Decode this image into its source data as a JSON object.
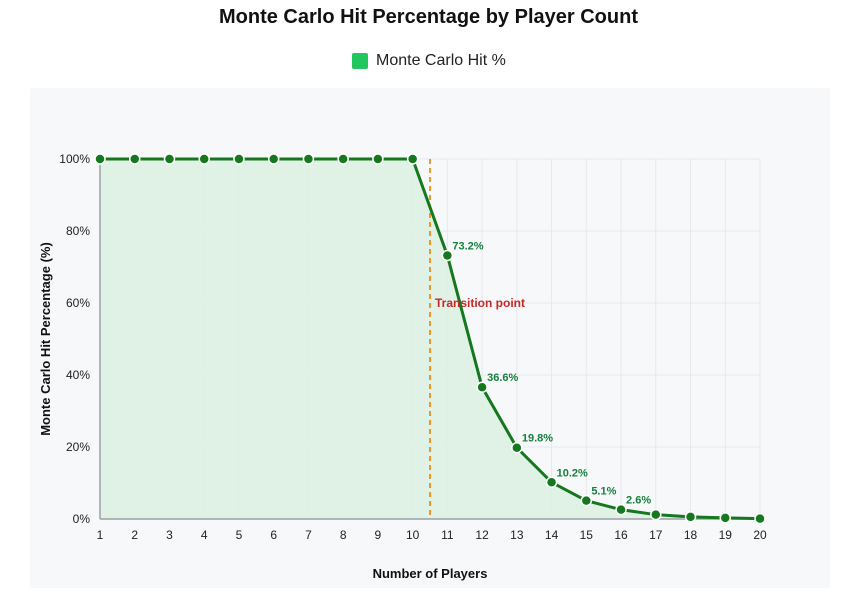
{
  "chart_data": {
    "type": "line",
    "title": "Monte Carlo Hit Percentage by Player Count",
    "xlabel": "Number of Players",
    "ylabel": "Monte Carlo Hit Percentage (%)",
    "x": [
      1,
      2,
      3,
      4,
      5,
      6,
      7,
      8,
      9,
      10,
      11,
      12,
      13,
      14,
      15,
      16,
      17,
      18,
      19,
      20
    ],
    "series": [
      {
        "name": "Monte Carlo Hit %",
        "values": [
          100,
          100,
          100,
          100,
          100,
          100,
          100,
          100,
          100,
          100,
          73.2,
          36.6,
          19.8,
          10.2,
          5.1,
          2.6,
          1.2,
          0.6,
          0.3,
          0.1
        ]
      }
    ],
    "data_labels": [
      {
        "x": 11,
        "text": "73.2%"
      },
      {
        "x": 12,
        "text": "36.6%"
      },
      {
        "x": 13,
        "text": "19.8%"
      },
      {
        "x": 14,
        "text": "10.2%"
      },
      {
        "x": 15,
        "text": "5.1%"
      },
      {
        "x": 16,
        "text": "2.6%"
      }
    ],
    "y_ticks": [
      "0%",
      "20%",
      "40%",
      "60%",
      "80%",
      "100%"
    ],
    "y_tick_values": [
      0,
      20,
      40,
      60,
      80,
      100
    ],
    "ylim": [
      0,
      100
    ],
    "xlim": [
      1,
      20
    ],
    "grid": true,
    "legend_position": "top-center",
    "annotation": {
      "text": "Transition point",
      "x": 10.5
    },
    "colors": {
      "line": "#15781f",
      "fill": "#dcf1e1",
      "legend": "#22c55e",
      "marker": "#15781f",
      "annotation_line": "#f08c1a",
      "annotation_text": "#c62828"
    }
  }
}
